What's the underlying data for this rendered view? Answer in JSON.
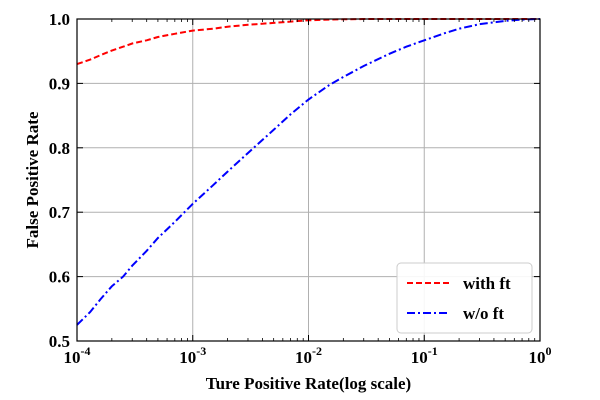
{
  "chart_data": {
    "type": "line",
    "xlabel": "Ture Positive Rate(log scale)",
    "ylabel": "False Positive Rate",
    "xscale": "log",
    "xlim": [
      0.0001,
      1
    ],
    "ylim": [
      0.5,
      1.0
    ],
    "x_ticks": [
      {
        "value": 0.0001,
        "base": "10",
        "exp": "-4"
      },
      {
        "value": 0.001,
        "base": "10",
        "exp": "-3"
      },
      {
        "value": 0.01,
        "base": "10",
        "exp": "-2"
      },
      {
        "value": 0.1,
        "base": "10",
        "exp": "-1"
      },
      {
        "value": 1,
        "base": "10",
        "exp": "0"
      }
    ],
    "y_ticks": [
      {
        "value": 0.5,
        "label": "0.5"
      },
      {
        "value": 0.6,
        "label": "0.6"
      },
      {
        "value": 0.7,
        "label": "0.7"
      },
      {
        "value": 0.8,
        "label": "0.8"
      },
      {
        "value": 0.9,
        "label": "0.9"
      },
      {
        "value": 1.0,
        "label": "1.0"
      }
    ],
    "grid": true,
    "legend_position": "bottom-right",
    "series": [
      {
        "name": "with ft",
        "color": "#ff0000",
        "style": "dashed",
        "x": [
          0.0001,
          0.00013,
          0.00016,
          0.0002,
          0.00025,
          0.0003,
          0.0004,
          0.0005,
          0.0007,
          0.001,
          0.0015,
          0.002,
          0.003,
          0.005,
          0.007,
          0.01,
          0.015,
          0.02,
          0.03,
          0.05,
          0.1,
          0.2,
          0.5,
          1
        ],
        "y": [
          0.93,
          0.937,
          0.944,
          0.951,
          0.957,
          0.962,
          0.967,
          0.972,
          0.977,
          0.982,
          0.985,
          0.988,
          0.991,
          0.994,
          0.996,
          0.998,
          0.999,
          0.9995,
          1.0,
          1.0,
          1.0,
          1.0,
          1.0,
          1.0
        ]
      },
      {
        "name": "w/o ft",
        "color": "#0000ff",
        "style": "dashdot",
        "x": [
          0.0001,
          0.00013,
          0.00016,
          0.0002,
          0.00025,
          0.0003,
          0.0004,
          0.0005,
          0.0007,
          0.001,
          0.0015,
          0.002,
          0.003,
          0.005,
          0.007,
          0.01,
          0.015,
          0.02,
          0.03,
          0.05,
          0.07,
          0.1,
          0.15,
          0.2,
          0.3,
          0.5,
          0.7,
          1
        ],
        "y": [
          0.525,
          0.545,
          0.565,
          0.585,
          0.6,
          0.617,
          0.64,
          0.66,
          0.685,
          0.713,
          0.742,
          0.763,
          0.792,
          0.828,
          0.852,
          0.875,
          0.897,
          0.91,
          0.927,
          0.946,
          0.957,
          0.967,
          0.978,
          0.985,
          0.992,
          0.997,
          0.999,
          1.0
        ]
      }
    ]
  }
}
